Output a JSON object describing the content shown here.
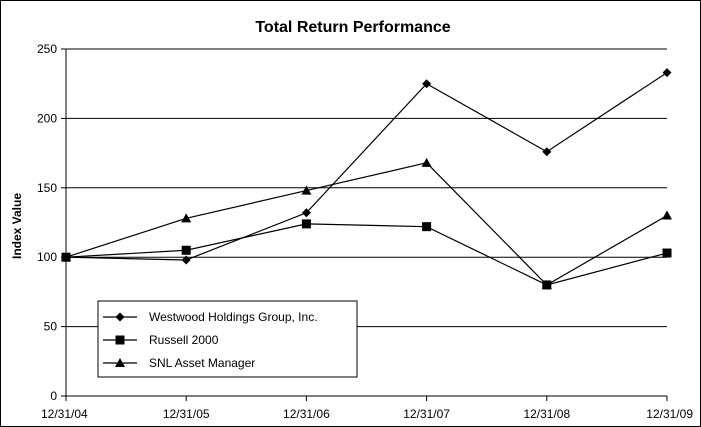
{
  "chart_data": {
    "type": "line",
    "title": "Total Return Performance",
    "xlabel": "",
    "ylabel": "Index Value",
    "categories": [
      "12/31/04",
      "12/31/05",
      "12/31/06",
      "12/31/07",
      "12/31/08",
      "12/31/09"
    ],
    "ylim": [
      0,
      250
    ],
    "yticks": [
      0,
      50,
      100,
      150,
      200,
      250
    ],
    "grid": true,
    "legend_position": "bottom-left",
    "series": [
      {
        "name": "Westwood Holdings Group, Inc.",
        "marker": "diamond",
        "values": [
          100,
          98,
          132,
          225,
          176,
          233
        ]
      },
      {
        "name": "Russell 2000",
        "marker": "square",
        "values": [
          100,
          105,
          124,
          122,
          80,
          103
        ]
      },
      {
        "name": "SNL Asset Manager",
        "marker": "triangle",
        "values": [
          100,
          128,
          148,
          168,
          80,
          130
        ]
      }
    ]
  }
}
